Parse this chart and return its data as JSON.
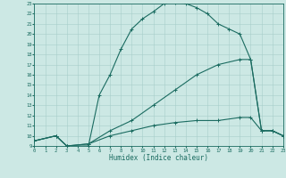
{
  "xlabel": "Humidex (Indice chaleur)",
  "bg_color": "#cce8e4",
  "grid_color": "#a8ceca",
  "line_color": "#1a6b60",
  "xlim": [
    0,
    23
  ],
  "ylim": [
    9,
    23
  ],
  "xticks": [
    0,
    1,
    2,
    3,
    4,
    5,
    6,
    7,
    8,
    9,
    10,
    11,
    12,
    13,
    14,
    15,
    16,
    17,
    18,
    19,
    20,
    21,
    22,
    23
  ],
  "yticks": [
    9,
    10,
    11,
    12,
    13,
    14,
    15,
    16,
    17,
    18,
    19,
    20,
    21,
    22,
    23
  ],
  "curve1_x": [
    0,
    2,
    3,
    5,
    6,
    7,
    8,
    9,
    10,
    11,
    12,
    13,
    14,
    15,
    16,
    17,
    18,
    19,
    20,
    21,
    22,
    23
  ],
  "curve1_y": [
    9.5,
    10,
    9.0,
    9.0,
    14.0,
    16.0,
    18.5,
    20.5,
    21.5,
    22.2,
    23.0,
    23.1,
    23.0,
    22.6,
    22.0,
    21.0,
    20.5,
    20.0,
    17.5,
    10.5,
    10.5,
    10.0
  ],
  "curve2_x": [
    0,
    2,
    3,
    5,
    7,
    9,
    11,
    13,
    15,
    17,
    19,
    20,
    21,
    22,
    23
  ],
  "curve2_y": [
    9.5,
    10,
    9.0,
    9.2,
    10.5,
    11.5,
    13.0,
    14.5,
    16.0,
    17.0,
    17.5,
    17.5,
    10.5,
    10.5,
    10.0
  ],
  "curve3_x": [
    0,
    2,
    3,
    5,
    7,
    9,
    11,
    13,
    15,
    17,
    19,
    20,
    21,
    22,
    23
  ],
  "curve3_y": [
    9.5,
    10,
    9.0,
    9.2,
    10.0,
    10.5,
    11.0,
    11.3,
    11.5,
    11.5,
    11.8,
    11.8,
    10.5,
    10.5,
    10.0
  ],
  "marker": "+",
  "markersize": 3,
  "lw": 0.8
}
